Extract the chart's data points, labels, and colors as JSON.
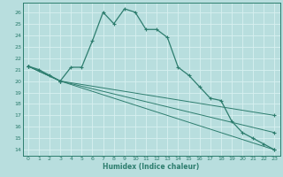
{
  "xlabel": "Humidex (Indice chaleur)",
  "xlim": [
    -0.5,
    23.5
  ],
  "ylim": [
    13.5,
    26.8
  ],
  "yticks": [
    14,
    15,
    16,
    17,
    18,
    19,
    20,
    21,
    22,
    23,
    24,
    25,
    26
  ],
  "xticks": [
    0,
    1,
    2,
    3,
    4,
    5,
    6,
    7,
    8,
    9,
    10,
    11,
    12,
    13,
    14,
    15,
    16,
    17,
    18,
    19,
    20,
    21,
    22,
    23
  ],
  "background_color": "#b8dede",
  "grid_color": "#d8f0f0",
  "line_color": "#2d7d6e",
  "line1": {
    "x": [
      0,
      1,
      2,
      3,
      4,
      5,
      6,
      7,
      8,
      9,
      10,
      11,
      12,
      13,
      14,
      15,
      16,
      17,
      18,
      19,
      20,
      21,
      22,
      23
    ],
    "y": [
      21.3,
      21.0,
      20.5,
      20.0,
      21.2,
      21.2,
      23.5,
      26.0,
      25.0,
      26.3,
      26.0,
      24.5,
      24.5,
      23.8,
      21.2,
      20.5,
      19.5,
      18.5,
      18.3,
      16.5,
      15.5,
      15.0,
      14.5,
      14.0
    ]
  },
  "line2": {
    "x": [
      0,
      3,
      23
    ],
    "y": [
      21.3,
      20.0,
      14.0
    ]
  },
  "line3": {
    "x": [
      0,
      3,
      23
    ],
    "y": [
      21.3,
      20.0,
      15.5
    ]
  },
  "line4": {
    "x": [
      0,
      3,
      23
    ],
    "y": [
      21.3,
      20.0,
      17.0
    ]
  }
}
